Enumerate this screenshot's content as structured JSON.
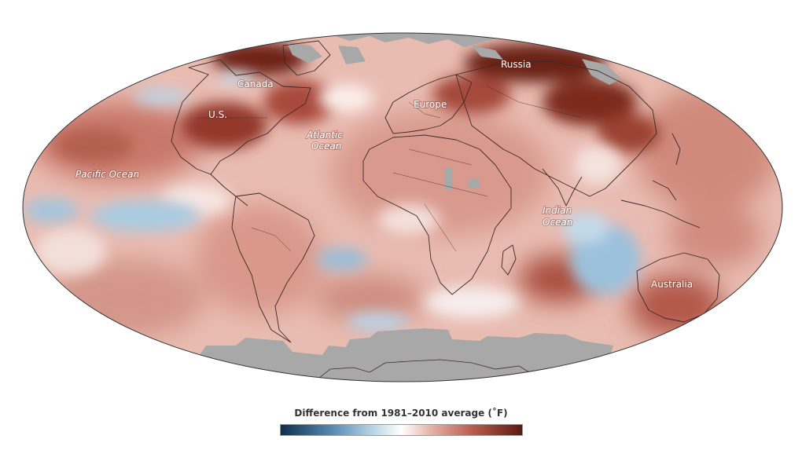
{
  "map": {
    "labels": {
      "canada": "Canada",
      "us": "U.S.",
      "russia": "Russia",
      "europe": "Europe",
      "atlantic_line1": "Atlantic",
      "atlantic_line2": "Ocean",
      "pacific": "Pacific Ocean",
      "indian_line1": "Indian",
      "indian_line2": "Ocean",
      "australia": "Australia"
    },
    "colors": {
      "warm_dark": "#5a1a10",
      "warm": "#b85a4a",
      "warm_light": "#e7b3a8",
      "neutral": "#ffffff",
      "cool_light": "#b7d4e6",
      "cool": "#5a8db5",
      "cool_dark": "#0f2e4d",
      "no_data": "#a8a8a8"
    }
  },
  "legend": {
    "title": "Difference from 1981–2010 average (˚F)"
  }
}
